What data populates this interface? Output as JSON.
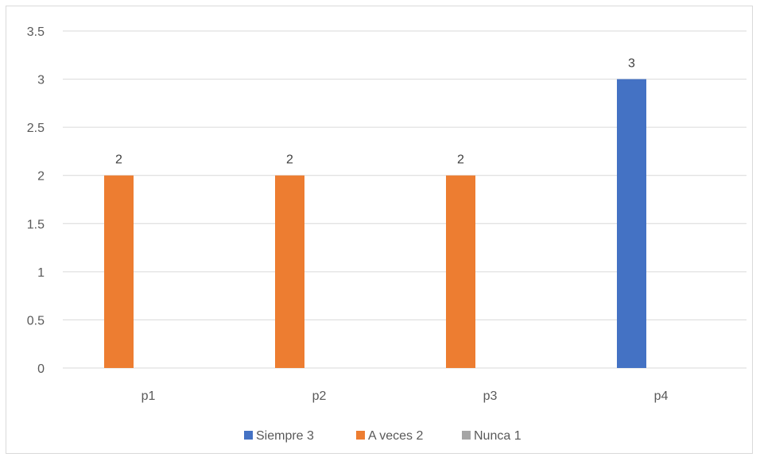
{
  "chart_data": {
    "type": "bar",
    "title": "",
    "xlabel": "",
    "ylabel": "",
    "categories": [
      "p1",
      "p2",
      "p3",
      "p4"
    ],
    "ylim": [
      0,
      3.5
    ],
    "yticks": [
      "0",
      "0.5",
      "1",
      "1.5",
      "2",
      "2.5",
      "3",
      "3.5"
    ],
    "grid": true,
    "legend_position": "bottom",
    "series": [
      {
        "name": "Siempre 3",
        "color": "#4472c4",
        "values": [
          null,
          null,
          null,
          3
        ]
      },
      {
        "name": "A veces 2",
        "color": "#ed7d31",
        "values": [
          2,
          2,
          2,
          null
        ]
      },
      {
        "name": "Nunca 1",
        "color": "#a5a5a5",
        "values": [
          null,
          null,
          null,
          null
        ]
      }
    ],
    "data_labels": [
      {
        "category": "p1",
        "series": "A veces 2",
        "text": "2"
      },
      {
        "category": "p2",
        "series": "A veces 2",
        "text": "2"
      },
      {
        "category": "p3",
        "series": "A veces 2",
        "text": "2"
      },
      {
        "category": "p4",
        "series": "Siempre 3",
        "text": "3"
      }
    ]
  }
}
